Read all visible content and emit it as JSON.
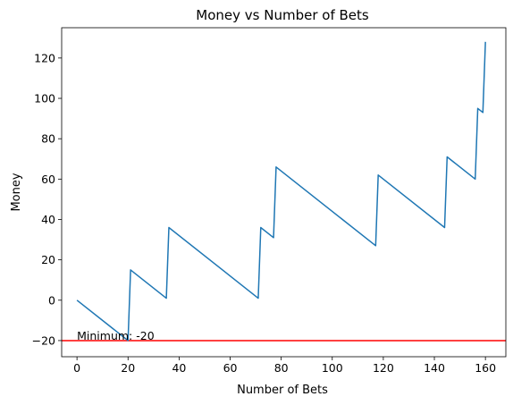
{
  "chart_data": {
    "type": "line",
    "title": "Money vs Number of Bets",
    "xlabel": "Number of Bets",
    "ylabel": "Money",
    "xlim": [
      -6,
      168
    ],
    "ylim": [
      -28,
      135
    ],
    "xticks": [
      0,
      20,
      40,
      60,
      80,
      100,
      120,
      140,
      160
    ],
    "yticks": [
      -20,
      0,
      20,
      40,
      60,
      80,
      100,
      120
    ],
    "grid": false,
    "series": [
      {
        "color": "#1f77b4",
        "x": [
          0,
          20,
          21,
          35,
          36,
          71,
          72,
          77,
          78,
          117,
          118,
          144,
          145,
          156,
          157,
          159,
          160
        ],
        "y": [
          0,
          -20,
          15,
          1,
          36,
          1,
          36,
          31,
          66,
          27,
          62,
          36,
          71,
          60,
          95,
          93,
          128
        ]
      }
    ],
    "hline": {
      "y": -20,
      "color": "#ff0000"
    },
    "annotation": {
      "text": "Minimum: -20",
      "x": 0,
      "y": -20
    }
  }
}
